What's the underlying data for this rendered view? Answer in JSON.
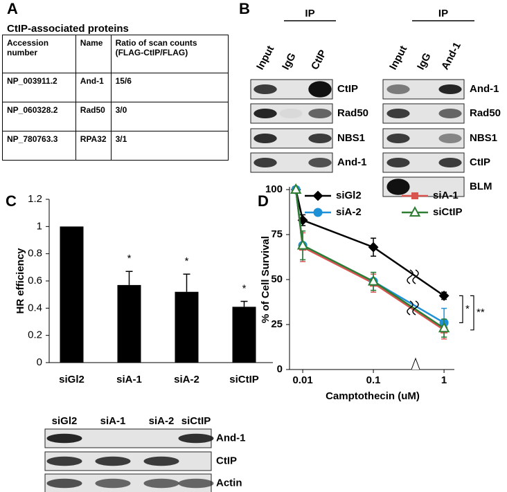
{
  "panels": [
    "A",
    "B",
    "C",
    "D"
  ],
  "table": {
    "title": "CtIP-associated proteins",
    "header": [
      "Accession number",
      "Name",
      "Ratio of scan counts (FLAG-CtIP/FLAG)"
    ],
    "rows": [
      [
        "NP_003911.2",
        "And-1",
        "15/6"
      ],
      [
        "NP_060328.2",
        "Rad50",
        "3/0"
      ],
      [
        "NP_780763.3",
        "RPA32",
        "3/1"
      ]
    ]
  },
  "blots": [
    {
      "ip": "IP",
      "lanes": [
        "Input",
        "IgG",
        "CtIP"
      ],
      "rows": [
        "CtIP",
        "Rad50",
        "NBS1",
        "And-1"
      ]
    },
    {
      "ip": "IP",
      "lanes": [
        "Input",
        "IgG",
        "And-1"
      ],
      "rows": [
        "And-1",
        "Rad50",
        "NBS1",
        "CtIP",
        "BLM"
      ]
    },
    {
      "lanes": [
        "siGl2",
        "siA-1",
        "siA-2",
        "siCtIP"
      ],
      "rows": [
        "And-1",
        "CtIP",
        "Actin"
      ]
    }
  ],
  "chart_data": [
    {
      "type": "bar",
      "y_label": "HR efficiency",
      "categories": [
        "siGl2",
        "siA-1",
        "siA-2",
        "siCtIP"
      ],
      "values": [
        1,
        0.57,
        0.52,
        0.41
      ],
      "errors": [
        0,
        0.1,
        0.13,
        0.04
      ],
      "significance": [
        null,
        "*",
        "*",
        "*"
      ],
      "color": "#000000",
      "ylim": [
        0,
        1.2
      ],
      "yticks": [
        0,
        0.2,
        0.4,
        0.6,
        0.8,
        1,
        1.2
      ]
    },
    {
      "type": "line",
      "y_label": "% of Cell Survival",
      "x_label": "Camptothecin (uM)",
      "x": [
        0.008,
        0.01,
        0.1,
        1
      ],
      "log_x": true,
      "xlim": [
        0.0065,
        1.4
      ],
      "xticks": [
        0.01,
        0.1,
        1
      ],
      "ylim": [
        0,
        100
      ],
      "yticks": [
        0,
        25,
        50,
        75,
        100
      ],
      "series": [
        {
          "name": "siGl2",
          "color": "#000000",
          "marker": "diamond",
          "values": [
            100,
            83,
            68,
            41
          ],
          "errors": [
            0,
            3,
            5,
            2
          ]
        },
        {
          "name": "siA-1",
          "color": "#d9534f",
          "marker": "square",
          "values": [
            100,
            68,
            48,
            22
          ],
          "errors": [
            0,
            8,
            5,
            5
          ]
        },
        {
          "name": "siA-2",
          "color": "#1e90d6",
          "marker": "circle",
          "values": [
            100,
            69,
            49,
            26
          ],
          "errors": [
            0,
            8,
            5,
            8
          ]
        },
        {
          "name": "siCtIP",
          "color": "#2e7d32",
          "marker": "triangle",
          "values": [
            100,
            69,
            49,
            23
          ],
          "errors": [
            0,
            8,
            5,
            5
          ]
        }
      ],
      "annotations": [
        "*",
        "**"
      ]
    }
  ]
}
